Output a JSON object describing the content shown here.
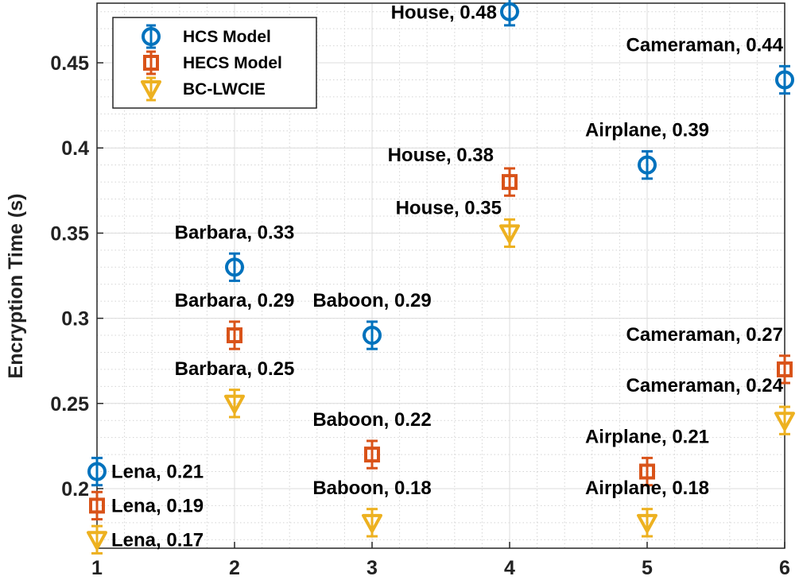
{
  "chart_data": {
    "type": "scatter",
    "title": "",
    "xlabel": "",
    "ylabel": "Encryption Time (s)",
    "xlim": [
      1,
      6
    ],
    "ylim": [
      0.165,
      0.485
    ],
    "x_ticks": [
      1,
      2,
      3,
      4,
      5,
      6
    ],
    "x_tick_labels": [
      "1",
      "2",
      "3",
      "4",
      "5",
      "6"
    ],
    "y_ticks": [
      0.2,
      0.25,
      0.3,
      0.35,
      0.4,
      0.45
    ],
    "y_tick_labels": [
      "0.2",
      "0.25",
      "0.3",
      "0.35",
      "0.4",
      "0.45"
    ],
    "grid": true,
    "minor_grid": true,
    "legend_position": "top-left",
    "series": [
      {
        "name": "HCS Model",
        "marker": "circle",
        "color": "#0072BD",
        "x": [
          1,
          2,
          3,
          4,
          5,
          6
        ],
        "values": [
          0.21,
          0.33,
          0.29,
          0.48,
          0.39,
          0.44
        ],
        "error": [
          0.008,
          0.008,
          0.008,
          0.008,
          0.008,
          0.008
        ],
        "labels": [
          "Lena, 0.21",
          "Barbara, 0.33",
          "Baboon, 0.29",
          "House, 0.48",
          "Airplane, 0.39",
          "Cameraman, 0.44"
        ]
      },
      {
        "name": "HECS Model",
        "marker": "square",
        "color": "#D95319",
        "x": [
          1,
          2,
          3,
          4,
          5,
          6
        ],
        "values": [
          0.19,
          0.29,
          0.22,
          0.38,
          0.21,
          0.27
        ],
        "error": [
          0.008,
          0.008,
          0.008,
          0.008,
          0.008,
          0.008
        ],
        "labels": [
          "Lena, 0.19",
          "Barbara, 0.29",
          "Baboon, 0.22",
          "House, 0.38",
          "Airplane, 0.21",
          "Cameraman, 0.27"
        ]
      },
      {
        "name": "BC-LWCIE",
        "marker": "triangle-down",
        "color": "#EDB120",
        "x": [
          1,
          2,
          3,
          4,
          5,
          6
        ],
        "values": [
          0.17,
          0.25,
          0.18,
          0.35,
          0.18,
          0.24
        ],
        "error": [
          0.008,
          0.008,
          0.008,
          0.008,
          0.008,
          0.008
        ],
        "labels": [
          "Lena, 0.17",
          "Barbara, 0.25",
          "Baboon, 0.18",
          "House, 0.35",
          "Airplane, 0.18",
          "Cameraman, 0.24"
        ]
      }
    ]
  }
}
